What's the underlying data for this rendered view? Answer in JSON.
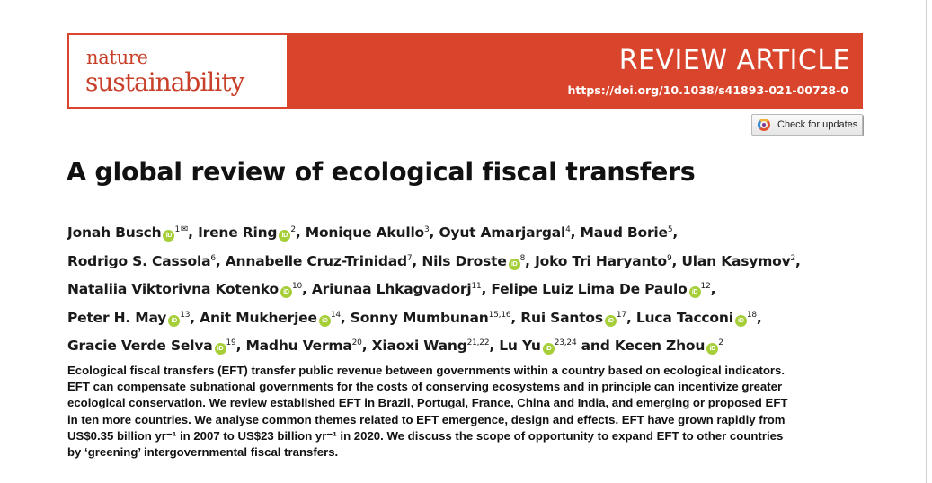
{
  "header": {
    "journal_line1": "nature",
    "journal_line2": "sustainability",
    "article_type": "REVIEW ARTICLE",
    "doi": "https://doi.org/10.1038/s41893-021-00728-0",
    "updates_button_label": "Check for updates",
    "banner_color": "#d8452c"
  },
  "title": "A global review of ecological fiscal transfers",
  "authors": [
    [
      {
        "name": "Jonah Busch",
        "orcid": true,
        "aff": "1",
        "email": true,
        "sep": ", "
      },
      {
        "name": "Irene Ring",
        "orcid": true,
        "aff": "2",
        "sep": ", "
      },
      {
        "name": "Monique Akullo",
        "aff": "3",
        "sep": ", "
      },
      {
        "name": "Oyut Amarjargal",
        "aff": "4",
        "sep": ", "
      },
      {
        "name": "Maud Borie",
        "aff": "5",
        "sep": ","
      }
    ],
    [
      {
        "name": "Rodrigo S. Cassola",
        "aff": "6",
        "sep": ", "
      },
      {
        "name": "Annabelle Cruz-Trinidad",
        "aff": "7",
        "sep": ", "
      },
      {
        "name": "Nils Droste",
        "orcid": true,
        "aff": "8",
        "sep": ", "
      },
      {
        "name": "Joko Tri Haryanto",
        "aff": "9",
        "sep": ", "
      },
      {
        "name": "Ulan Kasymov",
        "aff": "2",
        "sep": ","
      }
    ],
    [
      {
        "name": "Nataliia Viktorivna Kotenko",
        "orcid": true,
        "aff": "10",
        "sep": ", "
      },
      {
        "name": "Ariunaa Lhkagvadorj",
        "aff": "11",
        "sep": ", "
      },
      {
        "name": "Felipe Luiz Lima De Paulo",
        "orcid": true,
        "aff": "12",
        "sep": ","
      }
    ],
    [
      {
        "name": "Peter H. May",
        "orcid": true,
        "aff": "13",
        "sep": ", "
      },
      {
        "name": "Anit Mukherjee",
        "orcid": true,
        "aff": "14",
        "sep": ", "
      },
      {
        "name": "Sonny Mumbunan",
        "aff": "15,16",
        "sep": ", "
      },
      {
        "name": "Rui Santos",
        "orcid": true,
        "aff": "17",
        "sep": ", "
      },
      {
        "name": "Luca Tacconi",
        "orcid": true,
        "aff": "18",
        "sep": ","
      }
    ],
    [
      {
        "name": "Gracie Verde Selva",
        "orcid": true,
        "aff": "19",
        "sep": ", "
      },
      {
        "name": "Madhu Verma",
        "aff": "20",
        "sep": ", "
      },
      {
        "name": "Xiaoxi Wang",
        "aff": "21,22",
        "sep": ", "
      },
      {
        "name": "Lu Yu",
        "orcid": true,
        "aff": "23,24",
        "sep": " and "
      },
      {
        "name": "Kecen Zhou",
        "orcid": true,
        "aff": "2",
        "sep": ""
      }
    ]
  ],
  "abstract_lines": [
    "Ecological fiscal transfers (EFT) transfer public revenue between governments within a country based on ecological indicators.",
    "EFT can compensate subnational governments for the costs of conserving ecosystems and in principle can incentivize greater",
    "ecological conservation. We review established EFT in Brazil, Portugal, France, China and India, and emerging or proposed EFT",
    "in ten more countries. We analyse common themes related to EFT emergence, design and effects. EFT have grown rapidly from",
    "US$0.35 billion yr⁻¹ in 2007 to US$23 billion yr⁻¹ in 2020. We discuss the scope of opportunity to expand EFT to other countries",
    "by ‘greening’ intergovernmental fiscal transfers."
  ]
}
